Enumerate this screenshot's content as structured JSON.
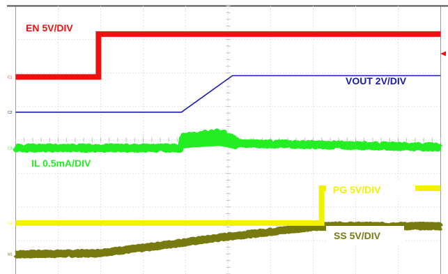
{
  "chart_data": {
    "type": "line",
    "title": "",
    "xlabel": "",
    "ylabel": "",
    "grid": true,
    "divisions": {
      "x": 10,
      "y": 8
    },
    "xlim": [
      0,
      10
    ],
    "ylim": [
      -4,
      4
    ],
    "series": [
      {
        "name": "EN  5V/DIV",
        "marker": "C1",
        "color": "#ee1111",
        "width": 8,
        "noise": 0,
        "x": [
          0,
          1.95,
          1.95,
          10
        ],
        "y": [
          1.88,
          1.88,
          3.16,
          3.16
        ]
      },
      {
        "name": "VOUT 2V/DIV",
        "marker": "C2",
        "color": "#1a1aaa",
        "width": 1.6,
        "noise": 0,
        "x": [
          0,
          3.9,
          5.1,
          10
        ],
        "y": [
          0.83,
          0.83,
          1.92,
          1.92
        ]
      },
      {
        "name": "IL 0.5mA/DIV",
        "marker": "C3",
        "color": "#22ee22",
        "width": 9,
        "noise": 0.05,
        "x": [
          0,
          3.9,
          3.9,
          4.2,
          4.5,
          4.8,
          4.9,
          5.2,
          10
        ],
        "y": [
          -0.24,
          -0.24,
          0.01,
          0.06,
          0.12,
          0.17,
          0.12,
          -0.1,
          -0.21
        ]
      },
      {
        "name": "PG  5V/DIV",
        "marker": "C4",
        "color": "#f2f200",
        "width": 8,
        "noise": 0,
        "x": [
          0,
          7.2,
          7.2,
          10
        ],
        "y": [
          -2.48,
          -2.48,
          -1.44,
          -1.44
        ]
      },
      {
        "name": "SS 5V/DIV",
        "marker": "M1",
        "color": "#767a0f",
        "width": 10,
        "noise": 0.03,
        "x": [
          0,
          1.9,
          3.0,
          4.0,
          5.0,
          6.0,
          6.8,
          7.5,
          8.5,
          10
        ],
        "y": [
          -3.41,
          -3.38,
          -3.22,
          -3.05,
          -2.88,
          -2.74,
          -2.62,
          -2.56,
          -2.57,
          -2.57
        ]
      }
    ]
  }
}
